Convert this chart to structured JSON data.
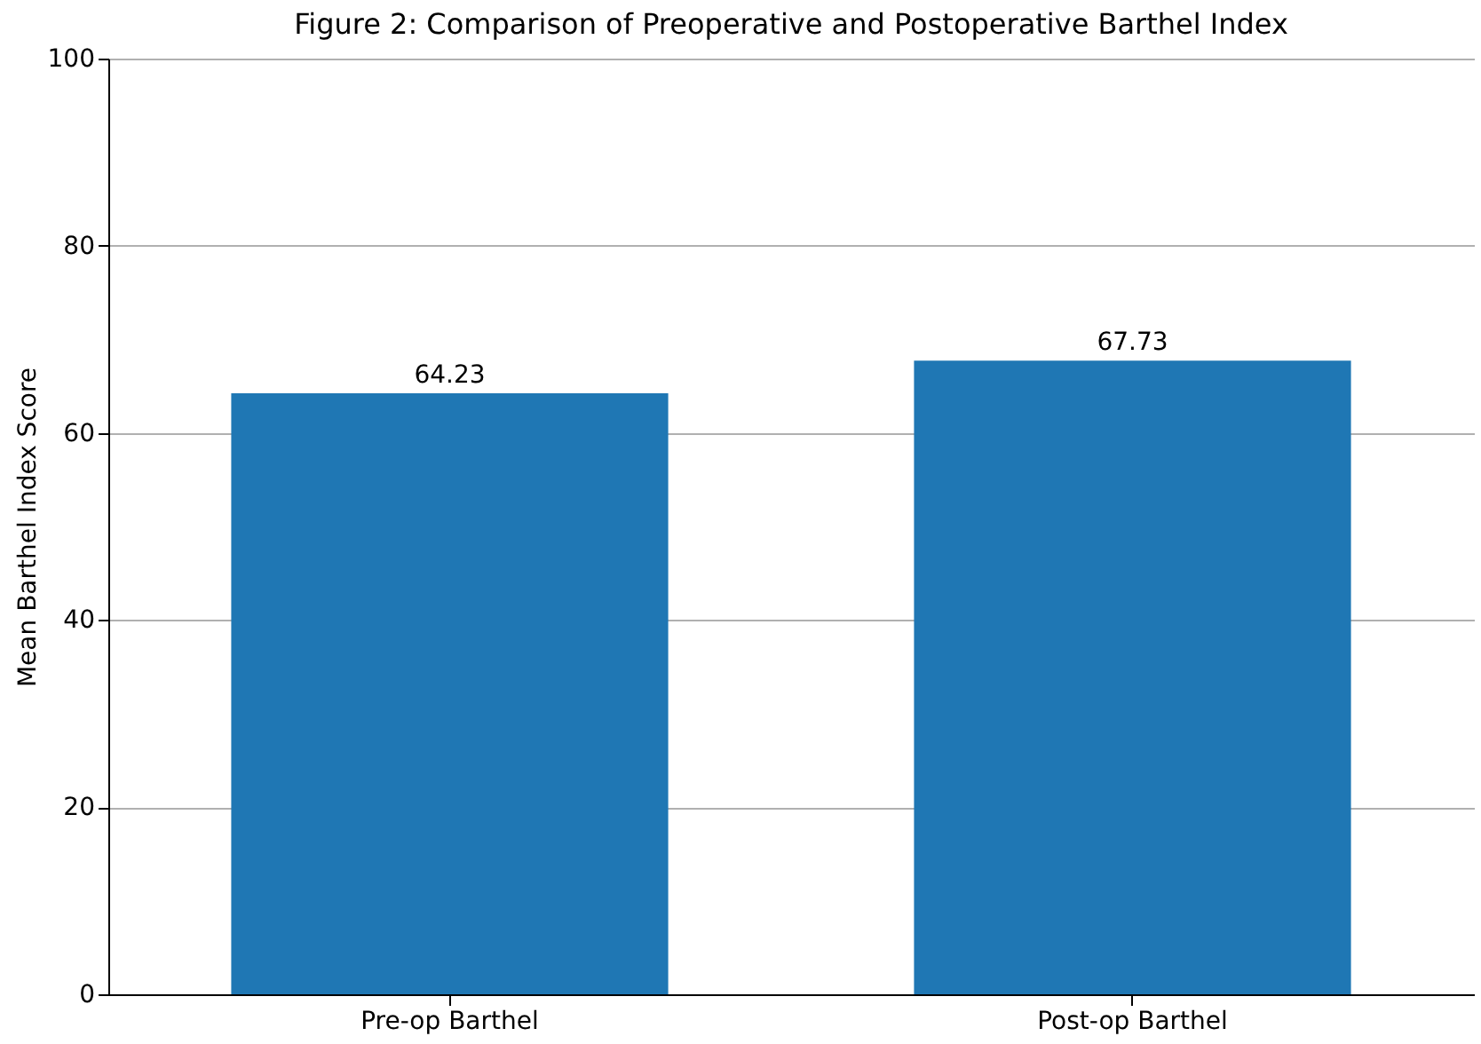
{
  "chart_data": {
    "type": "bar",
    "title": "Figure 2: Comparison of Preoperative and Postoperative Barthel Index",
    "ylabel": "Mean Barthel Index Score",
    "categories": [
      "Pre-op Barthel",
      "Post-op Barthel"
    ],
    "values": [
      64.23,
      67.73
    ],
    "color": "#1f77b4",
    "ylim": [
      0,
      100
    ],
    "yticks": [
      0,
      20,
      40,
      60,
      80,
      100
    ],
    "grid": "y",
    "data_labels": true
  }
}
